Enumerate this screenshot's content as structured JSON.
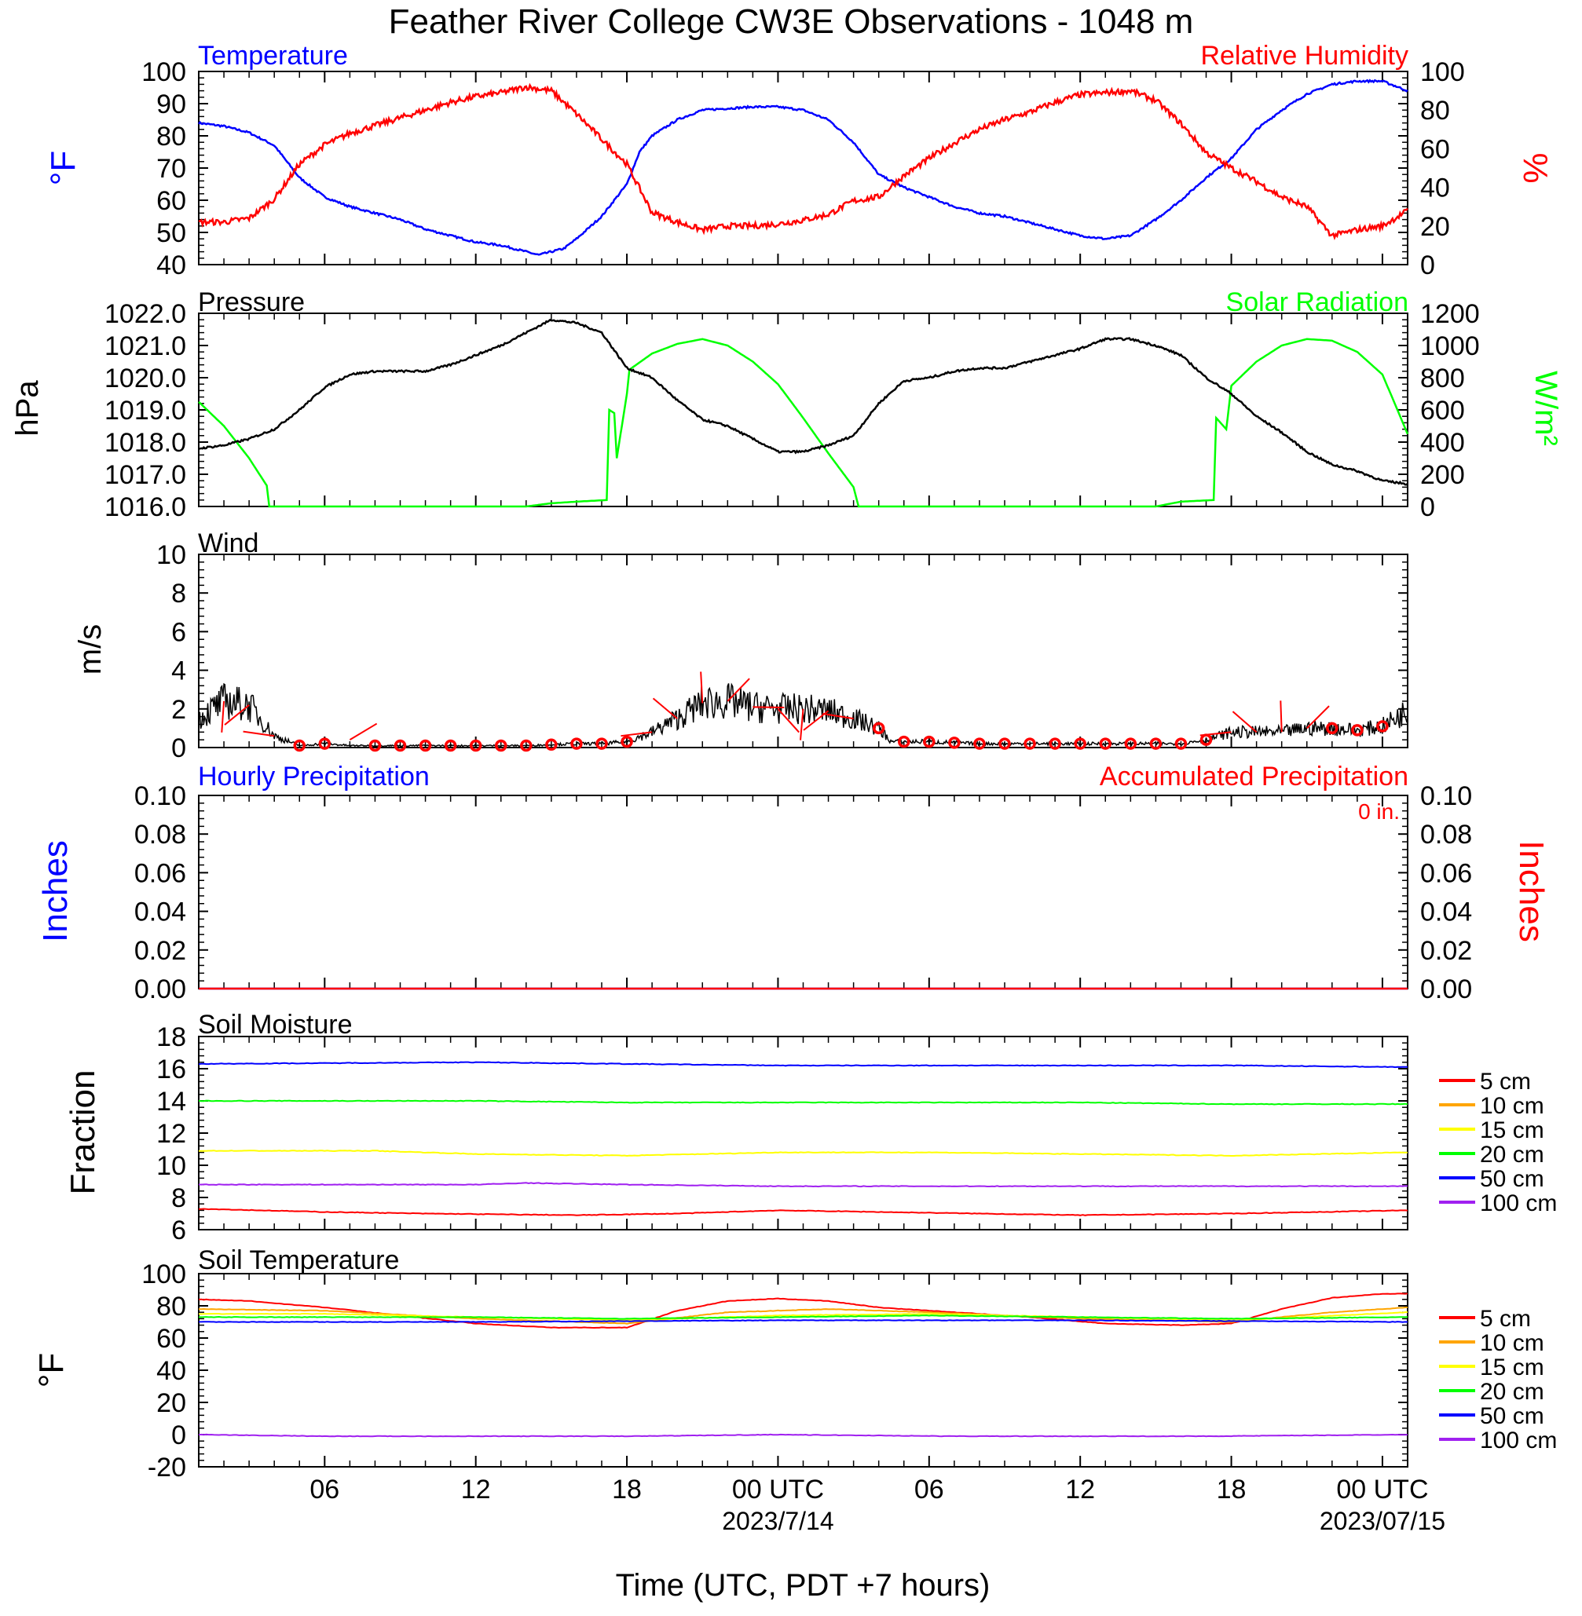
{
  "title": "Feather River College CW3E Observations - 1048 m",
  "colors": {
    "temperature": "#0000ff",
    "humidity": "#ff0000",
    "pressure": "#000000",
    "solar": "#00ff00",
    "soil": [
      "#ff0000",
      "#ffa500",
      "#ffff00",
      "#00ff00",
      "#0000ff",
      "#a020f0"
    ]
  },
  "x_axis": {
    "label": "Time (UTC, PDT +7 hours)",
    "ticks": [
      {
        "hour": 6,
        "label": "06"
      },
      {
        "hour": 12,
        "label": "12"
      },
      {
        "hour": 18,
        "label": "18"
      },
      {
        "hour": 24,
        "label": "00 UTC"
      },
      {
        "hour": 30,
        "label": "06"
      },
      {
        "hour": 36,
        "label": "12"
      },
      {
        "hour": 42,
        "label": "18"
      },
      {
        "hour": 48,
        "label": "00 UTC"
      }
    ],
    "dates": [
      {
        "hour": 24,
        "label": "2023/7/14"
      },
      {
        "hour": 48,
        "label": "2023/07/15"
      }
    ],
    "range_hours": [
      1,
      49
    ]
  },
  "panels": {
    "temp_rh": {
      "left_title": "Temperature",
      "right_title": "Relative Humidity",
      "left_unit": "°F",
      "right_unit": "%",
      "left_range": [
        40,
        100
      ],
      "left_ticks": [
        "40",
        "50",
        "60",
        "70",
        "80",
        "90",
        "100"
      ],
      "right_range": [
        0,
        100
      ],
      "right_ticks": [
        "0",
        "20",
        "40",
        "60",
        "80",
        "100"
      ]
    },
    "pressure_solar": {
      "left_title": "Pressure",
      "right_title": "Solar Radiation",
      "left_unit": "hPa",
      "right_unit": "W/m²",
      "left_range": [
        1016,
        1022
      ],
      "left_ticks": [
        "1016.0",
        "1017.0",
        "1018.0",
        "1019.0",
        "1020.0",
        "1021.0",
        "1022.0"
      ],
      "right_range": [
        0,
        1200
      ],
      "right_ticks": [
        "0",
        "200",
        "400",
        "600",
        "800",
        "1000",
        "1200"
      ]
    },
    "wind": {
      "title": "Wind",
      "unit": "m/s",
      "range": [
        0,
        10
      ],
      "ticks": [
        "0",
        "2",
        "4",
        "6",
        "8",
        "10"
      ]
    },
    "precip": {
      "left_title": "Hourly Precipitation",
      "right_title": "Accumulated Precipitation",
      "total": "0 in.",
      "left_unit": "Inches",
      "right_unit": "Inches",
      "range": [
        0,
        0.1
      ],
      "ticks": [
        "0.00",
        "0.02",
        "0.04",
        "0.06",
        "0.08",
        "0.10"
      ]
    },
    "soil_moisture": {
      "title": "Soil Moisture",
      "unit": "Fraction",
      "range": [
        6,
        18
      ],
      "ticks": [
        "6",
        "8",
        "10",
        "12",
        "14",
        "16",
        "18"
      ],
      "legend": [
        "5 cm",
        "10 cm",
        "15 cm",
        "20 cm",
        "50 cm",
        "100 cm"
      ]
    },
    "soil_temp": {
      "title": "Soil Temperature",
      "unit": "°F",
      "range": [
        -20,
        100
      ],
      "ticks": [
        "-20",
        "0",
        "20",
        "40",
        "60",
        "80",
        "100"
      ],
      "legend": [
        "5 cm",
        "10 cm",
        "15 cm",
        "20 cm",
        "50 cm",
        "100 cm"
      ]
    }
  },
  "chart_data": {
    "type": "line",
    "x_unit": "hours UTC since 2023/7/13 00",
    "temperature_F": [
      [
        1,
        84
      ],
      [
        2,
        83
      ],
      [
        3,
        81
      ],
      [
        4,
        77
      ],
      [
        5,
        67
      ],
      [
        6,
        61
      ],
      [
        7,
        58
      ],
      [
        8,
        56
      ],
      [
        9,
        54
      ],
      [
        10,
        51
      ],
      [
        11,
        49
      ],
      [
        12,
        47
      ],
      [
        13,
        46
      ],
      [
        14,
        44
      ],
      [
        14.5,
        43
      ],
      [
        15.5,
        45
      ],
      [
        16,
        48
      ],
      [
        17,
        55
      ],
      [
        18,
        65
      ],
      [
        18.5,
        75
      ],
      [
        19,
        80
      ],
      [
        20,
        85
      ],
      [
        21,
        88
      ],
      [
        22,
        88.5
      ],
      [
        23,
        89
      ],
      [
        24,
        89
      ],
      [
        25,
        88
      ],
      [
        26,
        85
      ],
      [
        27,
        78
      ],
      [
        28,
        68
      ],
      [
        29,
        64
      ],
      [
        30,
        61
      ],
      [
        31,
        58
      ],
      [
        32,
        56
      ],
      [
        33,
        55
      ],
      [
        34,
        53
      ],
      [
        35,
        51
      ],
      [
        36,
        49
      ],
      [
        37,
        48
      ],
      [
        38,
        49
      ],
      [
        39,
        54
      ],
      [
        40,
        60
      ],
      [
        41,
        67
      ],
      [
        42,
        73
      ],
      [
        43,
        82
      ],
      [
        44,
        88
      ],
      [
        45,
        93
      ],
      [
        46,
        96
      ],
      [
        47,
        97
      ],
      [
        48,
        97
      ],
      [
        49,
        94
      ]
    ],
    "rh_pct": [
      [
        1,
        22
      ],
      [
        2,
        22
      ],
      [
        3,
        24
      ],
      [
        4,
        34
      ],
      [
        5,
        52
      ],
      [
        6,
        62
      ],
      [
        7,
        68
      ],
      [
        8,
        72
      ],
      [
        9,
        76
      ],
      [
        10,
        80
      ],
      [
        11,
        84
      ],
      [
        12,
        87
      ],
      [
        13,
        89
      ],
      [
        14,
        92
      ],
      [
        15,
        90
      ],
      [
        16,
        78
      ],
      [
        17,
        65
      ],
      [
        18,
        52
      ],
      [
        19,
        27
      ],
      [
        20,
        22
      ],
      [
        21,
        18
      ],
      [
        22,
        20
      ],
      [
        23,
        20
      ],
      [
        24,
        21
      ],
      [
        25,
        23
      ],
      [
        26,
        26
      ],
      [
        27,
        33
      ],
      [
        28,
        35
      ],
      [
        29,
        46
      ],
      [
        30,
        55
      ],
      [
        31,
        63
      ],
      [
        32,
        70
      ],
      [
        33,
        75
      ],
      [
        34,
        79
      ],
      [
        35,
        84
      ],
      [
        36,
        88
      ],
      [
        37,
        89
      ],
      [
        38,
        90
      ],
      [
        39,
        85
      ],
      [
        40,
        73
      ],
      [
        41,
        58
      ],
      [
        42,
        50
      ],
      [
        43,
        43
      ],
      [
        44,
        35
      ],
      [
        45,
        30
      ],
      [
        46,
        15
      ],
      [
        47,
        18
      ],
      [
        48,
        20
      ],
      [
        49,
        28
      ]
    ],
    "pressure_hPa": [
      [
        1,
        1017.8
      ],
      [
        2,
        1017.9
      ],
      [
        3,
        1018.1
      ],
      [
        4,
        1018.4
      ],
      [
        5,
        1019.0
      ],
      [
        6,
        1019.7
      ],
      [
        7,
        1020.1
      ],
      [
        8,
        1020.2
      ],
      [
        9,
        1020.2
      ],
      [
        10,
        1020.2
      ],
      [
        11,
        1020.4
      ],
      [
        12,
        1020.7
      ],
      [
        13,
        1021.0
      ],
      [
        14,
        1021.4
      ],
      [
        15,
        1021.8
      ],
      [
        16,
        1021.7
      ],
      [
        17,
        1021.4
      ],
      [
        18,
        1020.3
      ],
      [
        19,
        1020.0
      ],
      [
        20,
        1019.3
      ],
      [
        21,
        1018.7
      ],
      [
        22,
        1018.5
      ],
      [
        23,
        1018.1
      ],
      [
        24,
        1017.7
      ],
      [
        25,
        1017.7
      ],
      [
        26,
        1017.9
      ],
      [
        27,
        1018.2
      ],
      [
        28,
        1019.2
      ],
      [
        29,
        1019.9
      ],
      [
        30,
        1020.0
      ],
      [
        31,
        1020.2
      ],
      [
        32,
        1020.3
      ],
      [
        33,
        1020.3
      ],
      [
        34,
        1020.5
      ],
      [
        35,
        1020.7
      ],
      [
        36,
        1020.9
      ],
      [
        37,
        1021.2
      ],
      [
        38,
        1021.2
      ],
      [
        39,
        1021.0
      ],
      [
        40,
        1020.7
      ],
      [
        41,
        1020.0
      ],
      [
        42,
        1019.5
      ],
      [
        43,
        1018.8
      ],
      [
        44,
        1018.3
      ],
      [
        45,
        1017.7
      ],
      [
        46,
        1017.3
      ],
      [
        47,
        1017.1
      ],
      [
        48,
        1016.8
      ],
      [
        49,
        1016.7
      ]
    ],
    "solar_Wm2": [
      [
        1,
        650
      ],
      [
        2,
        500
      ],
      [
        3,
        300
      ],
      [
        3.7,
        130
      ],
      [
        3.8,
        0
      ],
      [
        14,
        0
      ],
      [
        15,
        20
      ],
      [
        16,
        30
      ],
      [
        17.2,
        40
      ],
      [
        17.3,
        600
      ],
      [
        17.5,
        580
      ],
      [
        17.6,
        300
      ],
      [
        18,
        700
      ],
      [
        18.1,
        850
      ],
      [
        19,
        950
      ],
      [
        20,
        1010
      ],
      [
        21,
        1040
      ],
      [
        22,
        1000
      ],
      [
        23,
        900
      ],
      [
        24,
        760
      ],
      [
        25,
        550
      ],
      [
        26,
        330
      ],
      [
        27,
        120
      ],
      [
        27.2,
        0
      ],
      [
        39,
        0
      ],
      [
        40,
        30
      ],
      [
        41.3,
        40
      ],
      [
        41.4,
        550
      ],
      [
        41.8,
        480
      ],
      [
        42,
        750
      ],
      [
        43,
        900
      ],
      [
        44,
        1000
      ],
      [
        45,
        1040
      ],
      [
        46,
        1030
      ],
      [
        47,
        960
      ],
      [
        48,
        820
      ],
      [
        49,
        450
      ]
    ],
    "wind_speed_ms": [
      [
        1,
        1.5
      ],
      [
        2,
        2.4
      ],
      [
        3,
        2.2
      ],
      [
        4,
        0.6
      ],
      [
        5,
        0.1
      ],
      [
        6,
        0.2
      ],
      [
        7,
        0.1
      ],
      [
        8,
        0.1
      ],
      [
        10,
        0.1
      ],
      [
        12,
        0.1
      ],
      [
        14,
        0.1
      ],
      [
        16,
        0.2
      ],
      [
        17,
        0.2
      ],
      [
        18,
        0.3
      ],
      [
        19,
        0.8
      ],
      [
        20,
        1.5
      ],
      [
        21,
        2.3
      ],
      [
        22,
        2.4
      ],
      [
        23,
        2.1
      ],
      [
        24,
        2.0
      ],
      [
        25,
        2.0
      ],
      [
        26,
        1.9
      ],
      [
        27,
        1.5
      ],
      [
        28,
        1.0
      ],
      [
        28.5,
        0.3
      ],
      [
        30,
        0.3
      ],
      [
        32,
        0.2
      ],
      [
        34,
        0.2
      ],
      [
        36,
        0.2
      ],
      [
        38,
        0.2
      ],
      [
        40,
        0.2
      ],
      [
        41,
        0.4
      ],
      [
        42,
        0.8
      ],
      [
        43,
        0.8
      ],
      [
        44,
        0.8
      ],
      [
        45,
        1.0
      ],
      [
        46,
        1.0
      ],
      [
        47,
        0.9
      ],
      [
        48,
        1.1
      ],
      [
        49,
        1.9
      ]
    ],
    "calm_wind_hours": [
      5,
      6,
      8,
      9,
      10,
      11,
      12,
      13,
      14,
      15,
      16,
      17,
      18,
      28,
      29,
      30,
      31,
      32,
      33,
      34,
      35,
      36,
      37,
      38,
      39,
      40,
      41,
      46,
      47,
      48
    ],
    "hourly_precip_in": 0,
    "accumulated_precip_in": 0,
    "soil_moisture": {
      "5 cm": [
        [
          1,
          7.3
        ],
        [
          6,
          7.1
        ],
        [
          10,
          7.0
        ],
        [
          16,
          6.9
        ],
        [
          20,
          7.0
        ],
        [
          24,
          7.2
        ],
        [
          28,
          7.1
        ],
        [
          32,
          7.0
        ],
        [
          36,
          6.9
        ],
        [
          42,
          7.0
        ],
        [
          49,
          7.2
        ]
      ],
      "10 cm": [],
      "15 cm": [
        [
          1,
          10.9
        ],
        [
          8,
          10.9
        ],
        [
          12,
          10.7
        ],
        [
          18,
          10.6
        ],
        [
          24,
          10.8
        ],
        [
          30,
          10.8
        ],
        [
          36,
          10.7
        ],
        [
          42,
          10.6
        ],
        [
          49,
          10.8
        ]
      ],
      "20 cm": [
        [
          1,
          14.0
        ],
        [
          12,
          14.0
        ],
        [
          18,
          13.9
        ],
        [
          24,
          13.9
        ],
        [
          30,
          13.9
        ],
        [
          36,
          13.9
        ],
        [
          42,
          13.8
        ],
        [
          49,
          13.8
        ]
      ],
      "50 cm": [
        [
          1,
          16.3
        ],
        [
          12,
          16.4
        ],
        [
          18,
          16.3
        ],
        [
          24,
          16.2
        ],
        [
          30,
          16.2
        ],
        [
          36,
          16.2
        ],
        [
          42,
          16.2
        ],
        [
          49,
          16.1
        ]
      ],
      "100 cm": [
        [
          1,
          8.8
        ],
        [
          12,
          8.8
        ],
        [
          14,
          8.9
        ],
        [
          18,
          8.8
        ],
        [
          24,
          8.7
        ],
        [
          30,
          8.7
        ],
        [
          36,
          8.7
        ],
        [
          42,
          8.7
        ],
        [
          49,
          8.7
        ]
      ]
    },
    "soil_temperature_F": {
      "5 cm": [
        [
          1,
          84
        ],
        [
          3,
          83
        ],
        [
          6,
          79
        ],
        [
          9,
          74
        ],
        [
          12,
          69
        ],
        [
          15,
          66.5
        ],
        [
          18,
          66.5
        ],
        [
          20,
          77
        ],
        [
          22,
          83
        ],
        [
          24,
          84.5
        ],
        [
          26,
          83
        ],
        [
          28,
          79
        ],
        [
          31,
          76
        ],
        [
          34,
          73
        ],
        [
          37,
          69
        ],
        [
          40,
          68
        ],
        [
          42,
          69
        ],
        [
          44,
          78
        ],
        [
          46,
          85
        ],
        [
          48,
          87.5
        ],
        [
          49,
          87.5
        ]
      ],
      "10 cm": [
        [
          1,
          78
        ],
        [
          6,
          77
        ],
        [
          12,
          72
        ],
        [
          18,
          69
        ],
        [
          22,
          76
        ],
        [
          26,
          78
        ],
        [
          30,
          76
        ],
        [
          36,
          72
        ],
        [
          42,
          70
        ],
        [
          46,
          76
        ],
        [
          49,
          79
        ]
      ],
      "15 cm": [
        [
          1,
          75
        ],
        [
          6,
          75
        ],
        [
          12,
          73
        ],
        [
          18,
          71
        ],
        [
          24,
          74
        ],
        [
          30,
          75
        ],
        [
          36,
          73
        ],
        [
          42,
          71
        ],
        [
          49,
          76
        ]
      ],
      "20 cm": [
        [
          1,
          73
        ],
        [
          12,
          73
        ],
        [
          18,
          72
        ],
        [
          24,
          73
        ],
        [
          30,
          74
        ],
        [
          36,
          73
        ],
        [
          42,
          72
        ],
        [
          49,
          73
        ]
      ],
      "50 cm": [
        [
          1,
          70
        ],
        [
          12,
          70
        ],
        [
          24,
          71
        ],
        [
          36,
          71
        ],
        [
          49,
          70
        ]
      ],
      "100 cm": [
        [
          1,
          0
        ],
        [
          6,
          -1
        ],
        [
          18,
          -1
        ],
        [
          24,
          0
        ],
        [
          31,
          -1
        ],
        [
          41,
          -1
        ],
        [
          49,
          0
        ]
      ]
    }
  }
}
